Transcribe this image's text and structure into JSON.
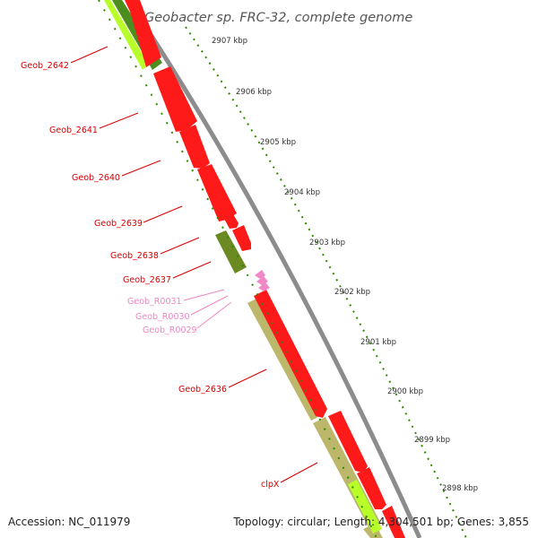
{
  "title": "Geobacter sp. FRC-32, complete genome",
  "footer": {
    "accession": "Accession: NC_011979",
    "topology": "Topology: circular; Length: 4,304,501 bp; Genes: 3,855"
  },
  "scale_ticks": [
    "2907 kbp",
    "2906 kbp",
    "2905 kbp",
    "2904 kbp",
    "2903 kbp",
    "2902 kbp",
    "2901 kbp",
    "2900 kbp",
    "2899 kbp",
    "2898 kbp"
  ],
  "genes": [
    {
      "label": "Geob_2642",
      "type": "CDS"
    },
    {
      "label": "Geob_2641",
      "type": "CDS"
    },
    {
      "label": "Geob_2640",
      "type": "CDS"
    },
    {
      "label": "Geob_2639",
      "type": "CDS"
    },
    {
      "label": "Geob_2638",
      "type": "CDS"
    },
    {
      "label": "Geob_2637",
      "type": "CDS"
    },
    {
      "label": "Geob_R0031",
      "type": "tRNA"
    },
    {
      "label": "Geob_R0030",
      "type": "tRNA"
    },
    {
      "label": "Geob_R0029",
      "type": "tRNA"
    },
    {
      "label": "Geob_2636",
      "type": "CDS"
    },
    {
      "label": "clpX",
      "type": "CDS"
    }
  ],
  "colors": {
    "cds": "#ff1a1a",
    "trna": "#f088c8",
    "backbone": "#8c8c8c",
    "cog_light_green": "#b8ff2a",
    "cog_dark_green": "#4b8e1e",
    "cog_olive": "#6b8b22",
    "cog_khaki": "#bdb76b",
    "tick": "#2e8b00",
    "cds_label": "#d80000",
    "trna_label": "#ec88c0",
    "title": "#555555"
  }
}
